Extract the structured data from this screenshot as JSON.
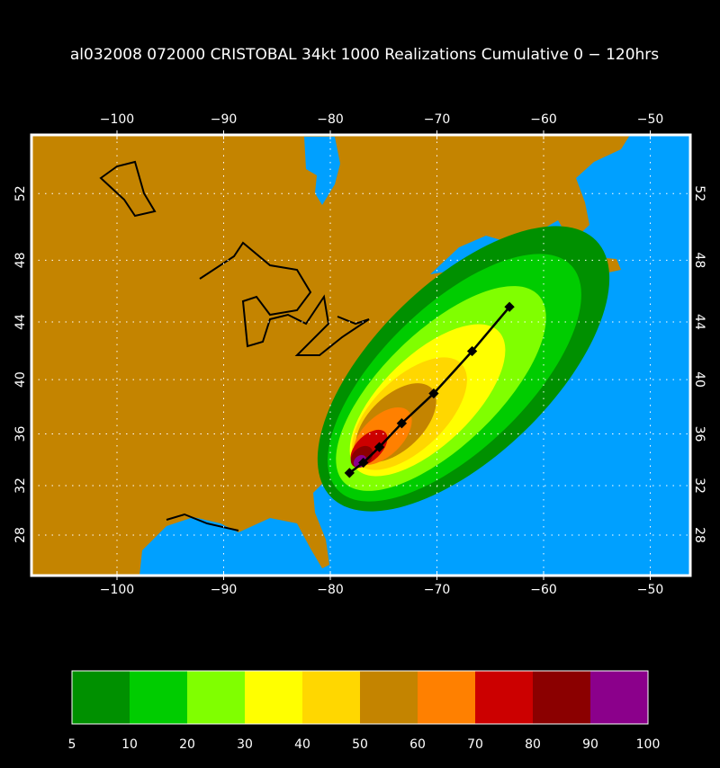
{
  "title": "al032008 072000 CRISTOBAL 34kt 1000 Realizations Cumulative 0 − 120hrs",
  "map": {
    "lon_ticks": [
      "−100",
      "−90",
      "−80",
      "−70",
      "−60",
      "−50"
    ],
    "lat_ticks": [
      "52",
      "48",
      "44",
      "40",
      "36",
      "32",
      "28"
    ],
    "colors": {
      "land": "#c48400",
      "ocean": "#00a0ff",
      "coast": "#000000",
      "grid": "#ffffff",
      "frame": "#ffffff"
    },
    "track": [
      [
        -78.2,
        33.0
      ],
      [
        -76.9,
        33.8
      ],
      [
        -75.4,
        35.0
      ],
      [
        -73.3,
        36.8
      ],
      [
        -70.3,
        39.0
      ],
      [
        -66.7,
        42.0
      ],
      [
        -63.2,
        45.0
      ]
    ]
  },
  "legend": {
    "labels": [
      "5",
      "10",
      "20",
      "30",
      "40",
      "50",
      "60",
      "70",
      "80",
      "90",
      "100"
    ],
    "colors": [
      "#009000",
      "#00cc00",
      "#80ff00",
      "#ffff00",
      "#ffd700",
      "#c48400",
      "#ff8000",
      "#cc0000",
      "#8b0000",
      "#8b008b"
    ]
  }
}
